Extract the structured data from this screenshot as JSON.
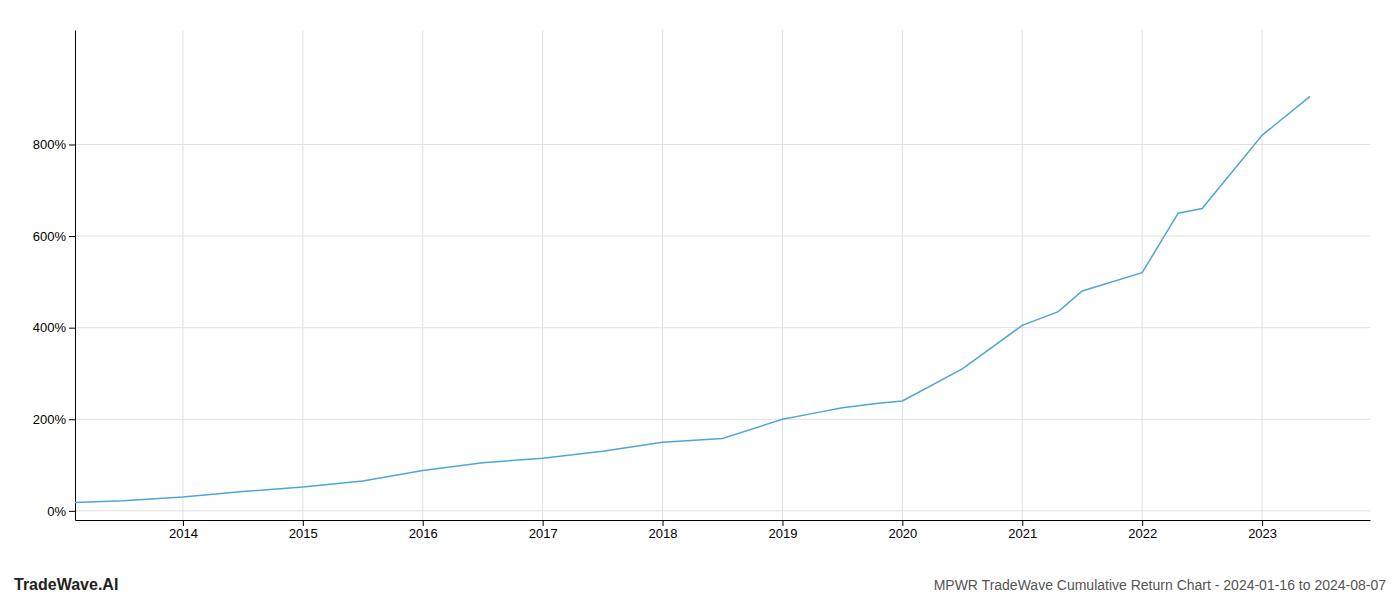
{
  "chart_data": {
    "type": "line",
    "title": "MPWR TradeWave Cumulative Return Chart - 2024-01-16 to 2024-08-07",
    "annotations": [
      "TradeWave.AI"
    ],
    "x": [
      2013.1,
      2013.5,
      2014.0,
      2014.5,
      2015.0,
      2015.5,
      2016.0,
      2016.5,
      2017.0,
      2017.5,
      2018.0,
      2018.5,
      2019.0,
      2019.3,
      2019.5,
      2019.8,
      2020.0,
      2020.5,
      2021.0,
      2021.3,
      2021.5,
      2022.0,
      2022.3,
      2022.5,
      2023.0,
      2023.4
    ],
    "values": [
      18,
      22,
      30,
      42,
      52,
      65,
      88,
      105,
      115,
      130,
      150,
      158,
      200,
      215,
      225,
      235,
      240,
      310,
      405,
      435,
      480,
      520,
      650,
      660,
      820,
      905
    ],
    "color": "#4da6d8",
    "xlim": [
      2013.1,
      2023.9
    ],
    "xticks": [
      2014,
      2015,
      2016,
      2017,
      2018,
      2019,
      2020,
      2021,
      2022,
      2023
    ],
    "ylim": [
      -20,
      1050
    ],
    "yticks": [
      {
        "value": 0,
        "label": "0%"
      },
      {
        "value": 200,
        "label": "200%"
      },
      {
        "value": 400,
        "label": "400%"
      },
      {
        "value": 600,
        "label": "600%"
      },
      {
        "value": 800,
        "label": "800%"
      }
    ],
    "grid": true
  }
}
